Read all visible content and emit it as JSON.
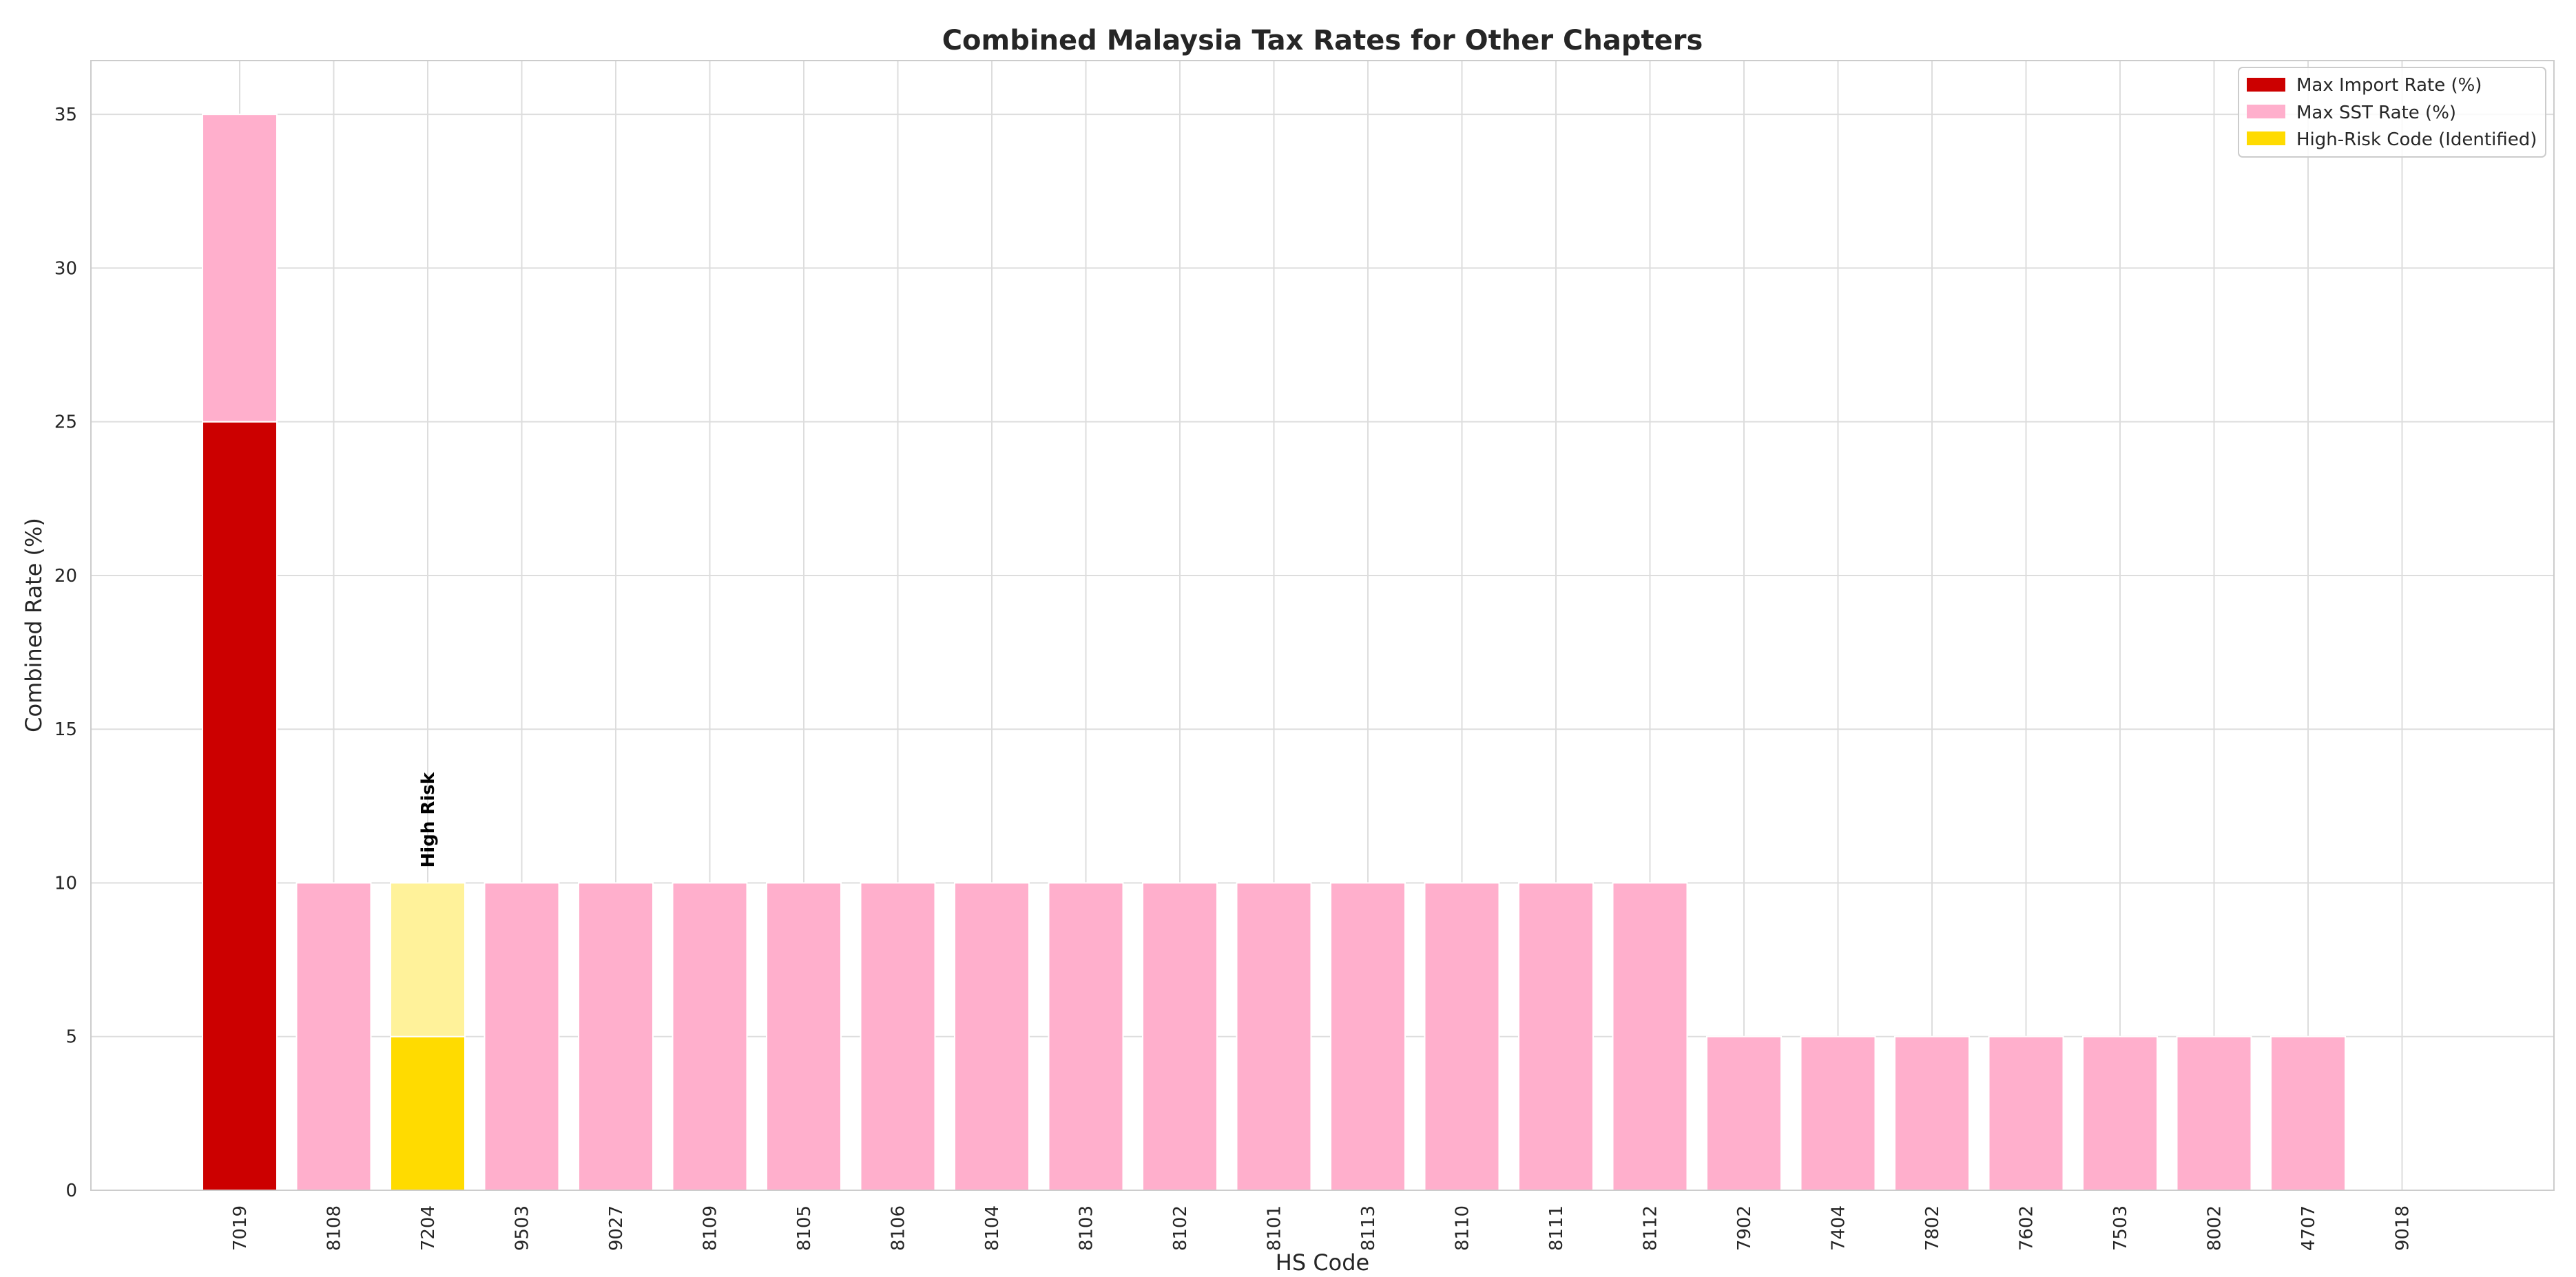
{
  "chart_data": {
    "type": "bar",
    "stacked": true,
    "title": "Combined Malaysia Tax Rates for Other Chapters",
    "xlabel": "HS Code",
    "ylabel": "Combined Rate (%)",
    "ylim": [
      0,
      36.75
    ],
    "yticks": [
      0,
      5,
      10,
      15,
      20,
      25,
      30,
      35
    ],
    "grid": true,
    "legend_position": "top-right",
    "categories": [
      "7019",
      "8108",
      "7204",
      "9503",
      "9027",
      "8109",
      "8105",
      "8106",
      "8104",
      "8103",
      "8102",
      "8101",
      "8113",
      "8110",
      "8111",
      "8112",
      "7902",
      "7404",
      "7802",
      "7602",
      "7503",
      "8002",
      "4707",
      "9018"
    ],
    "series": [
      {
        "name": "Max Import Rate (%)",
        "color": "#cc0000",
        "values": [
          25,
          0,
          5,
          0,
          0,
          0,
          0,
          0,
          0,
          0,
          0,
          0,
          0,
          0,
          0,
          0,
          0,
          0,
          0,
          0,
          0,
          0,
          0,
          0
        ]
      },
      {
        "name": "Max SST Rate (%)",
        "color": "#ffafcc",
        "values": [
          10,
          10,
          5,
          10,
          10,
          10,
          10,
          10,
          10,
          10,
          10,
          10,
          10,
          10,
          10,
          10,
          5,
          5,
          5,
          5,
          5,
          5,
          5,
          0
        ]
      }
    ],
    "highlight": {
      "legend_name": "High-Risk Code (Identified)",
      "category": "7204",
      "import_color": "#ffdb00",
      "sst_color": "#fff29a",
      "annotation": "High Risk"
    }
  }
}
